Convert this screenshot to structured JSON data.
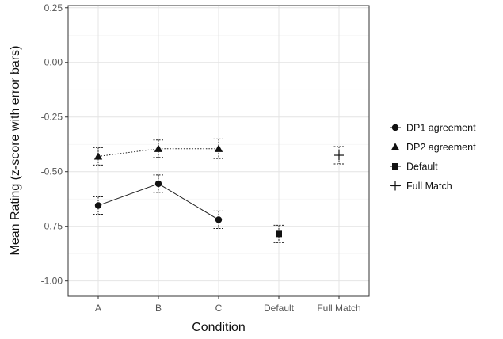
{
  "chart_data": {
    "type": "line",
    "xlabel": "Condition",
    "ylabel": "Mean Rating (z-score with error bars)",
    "categories": [
      "A",
      "B",
      "C",
      "Default",
      "Full Match"
    ],
    "ylim": [
      -1.07,
      0.26
    ],
    "yticks": [
      0.25,
      0.0,
      -0.25,
      -0.5,
      -0.75,
      -1.0
    ],
    "ytick_labels": [
      "0.25",
      "0.00",
      "-0.25",
      "-0.50",
      "-0.75",
      "-1.00"
    ],
    "grid": true,
    "legend_position": "right",
    "series": [
      {
        "name": "DP1 agreement",
        "marker": "circle",
        "line": "solid",
        "points": [
          {
            "x": "A",
            "y": -0.655,
            "err_low": -0.695,
            "err_high": -0.615
          },
          {
            "x": "B",
            "y": -0.555,
            "err_low": -0.595,
            "err_high": -0.515
          },
          {
            "x": "C",
            "y": -0.72,
            "err_low": -0.76,
            "err_high": -0.68
          }
        ]
      },
      {
        "name": "DP2 agreement",
        "marker": "triangle",
        "line": "dotted",
        "points": [
          {
            "x": "A",
            "y": -0.43,
            "err_low": -0.47,
            "err_high": -0.39
          },
          {
            "x": "B",
            "y": -0.395,
            "err_low": -0.435,
            "err_high": -0.355
          },
          {
            "x": "C",
            "y": -0.395,
            "err_low": -0.44,
            "err_high": -0.35
          }
        ]
      },
      {
        "name": "Default",
        "marker": "square",
        "line": "none",
        "points": [
          {
            "x": "Default",
            "y": -0.785,
            "err_low": -0.825,
            "err_high": -0.745
          }
        ]
      },
      {
        "name": "Full Match",
        "marker": "plus",
        "line": "none",
        "points": [
          {
            "x": "Full Match",
            "y": -0.425,
            "err_low": -0.465,
            "err_high": -0.385
          }
        ]
      }
    ]
  }
}
